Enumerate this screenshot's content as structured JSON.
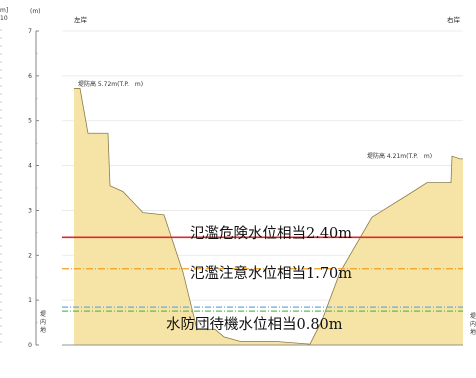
{
  "unit_label": "(m)",
  "left_bank": "左岸",
  "right_bank": "右岸",
  "left_levee_height": "堤防高 5.72m(T.P.　m)",
  "right_levee_height": "堤防高 4.21m(T.P.　m)",
  "inland_left": [
    "堤",
    "内",
    "地"
  ],
  "inland_right": [
    "堤",
    "内",
    "地"
  ],
  "left_edge_scale": [
    "m]",
    "10"
  ],
  "levels": {
    "danger": "氾濫危険水位相当2.40m",
    "caution": "氾濫注意水位相当1.70m",
    "standby": "水防団待機水位相当0.80m"
  },
  "colors": {
    "ground_fill": "#f6e4a6",
    "ground_stroke": "#8a7a4a",
    "danger_line": "#d92b2b",
    "caution_line": "#f0a020",
    "standby_line_blue": "#6aa7e8",
    "standby_line_green": "#55c055",
    "grid": "#e6e6e6"
  },
  "chart_data": {
    "type": "area",
    "ylabel": "(m)",
    "ylim": [
      0,
      7
    ],
    "y_ticks": [
      0,
      1,
      2,
      3,
      4,
      5,
      6,
      7
    ],
    "profile_points_x_index": [
      0,
      1,
      2,
      3,
      4,
      5,
      6,
      7,
      8,
      9,
      10,
      11,
      12,
      13,
      14,
      15,
      16,
      17,
      18,
      19,
      20,
      21,
      22,
      23
    ],
    "profile_elevation_m": [
      5.72,
      5.72,
      4.72,
      4.72,
      3.55,
      3.42,
      2.95,
      2.9,
      1.62,
      0.35,
      0.35,
      0.18,
      0.08,
      0.08,
      0.02,
      0.55,
      1.62,
      2.85,
      3.35,
      3.62,
      3.62,
      4.21,
      4.15,
      4.15
    ],
    "levels": [
      {
        "name": "氾濫危険水位相当2.40m",
        "value": 2.4
      },
      {
        "name": "氾濫注意水位相当1.70m",
        "value": 1.7
      },
      {
        "name": "水防団待機水位相当0.80m",
        "value": 0.8
      }
    ]
  }
}
